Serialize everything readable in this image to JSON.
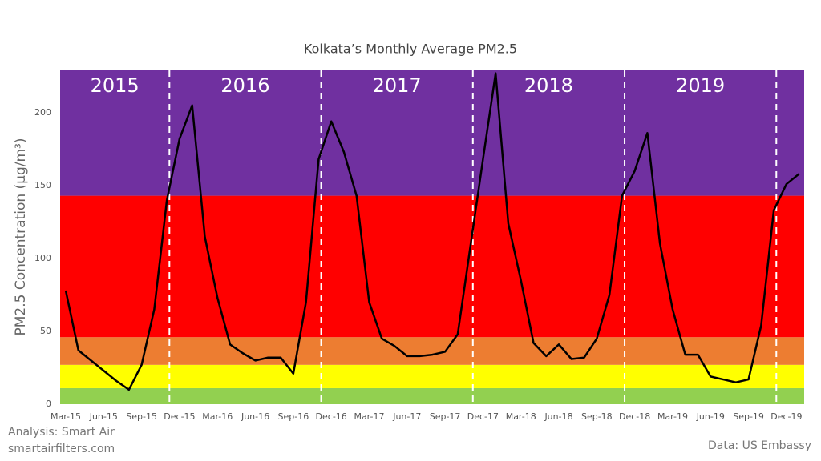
{
  "chart_data": {
    "type": "line",
    "title": "Kolkata’s Monthly Average PM2.5",
    "y_label": "PM2.5 Concentration (μg/m³)",
    "year_labels": [
      "2015",
      "2016",
      "2017",
      "2018",
      "2019"
    ],
    "footnotes": [
      "Analysis: Smart Air",
      "smartairfilters.com",
      "Data: US Embassy"
    ],
    "categories": [
      "Mar-15",
      null,
      null,
      "Jun-15",
      null,
      null,
      "Sep-15",
      null,
      null,
      "Dec-15",
      null,
      null,
      "Mar-16",
      null,
      null,
      "Jun-16",
      null,
      null,
      "Sep-16",
      null,
      null,
      "Dec-16",
      null,
      null,
      "Mar-17",
      null,
      null,
      "Jun-17",
      null,
      null,
      "Sep-17",
      null,
      null,
      "Dec-17",
      null,
      null,
      "Mar-18",
      null,
      null,
      "Jun-18",
      null,
      null,
      "Sep-18",
      null,
      null,
      "Dec-18",
      null,
      null,
      "Mar-19",
      null,
      null,
      "Jun-19",
      null,
      null,
      "Sep-19",
      null,
      null,
      "Dec-19",
      null
    ],
    "series": [
      {
        "name": "PM2.5",
        "color": "#000000",
        "values": [
          78,
          37,
          30,
          23,
          16,
          10,
          27,
          65,
          140,
          182,
          205,
          115,
          73,
          41,
          35,
          30,
          32,
          32,
          21,
          70,
          168,
          194,
          173,
          143,
          70,
          45,
          40,
          33,
          33,
          34,
          36,
          48,
          108,
          168,
          227,
          124,
          85,
          42,
          33,
          41,
          31,
          32,
          45,
          75,
          143,
          160,
          186,
          110,
          65,
          34,
          34,
          19,
          17,
          15,
          17,
          54,
          133,
          151,
          158
        ]
      }
    ],
    "bands": [
      {
        "from": 0,
        "to": 11,
        "color": "#92d050"
      },
      {
        "from": 11,
        "to": 27,
        "color": "#ffff00"
      },
      {
        "from": 27,
        "to": 46,
        "color": "#ed7d31"
      },
      {
        "from": 46,
        "to": 143,
        "color": "#ff0000"
      },
      {
        "from": 143,
        "to": 229,
        "color": "#7030a0"
      }
    ],
    "ylim": [
      0,
      229
    ],
    "yticks": [
      0,
      50,
      100,
      150,
      200
    ],
    "grid": false
  }
}
